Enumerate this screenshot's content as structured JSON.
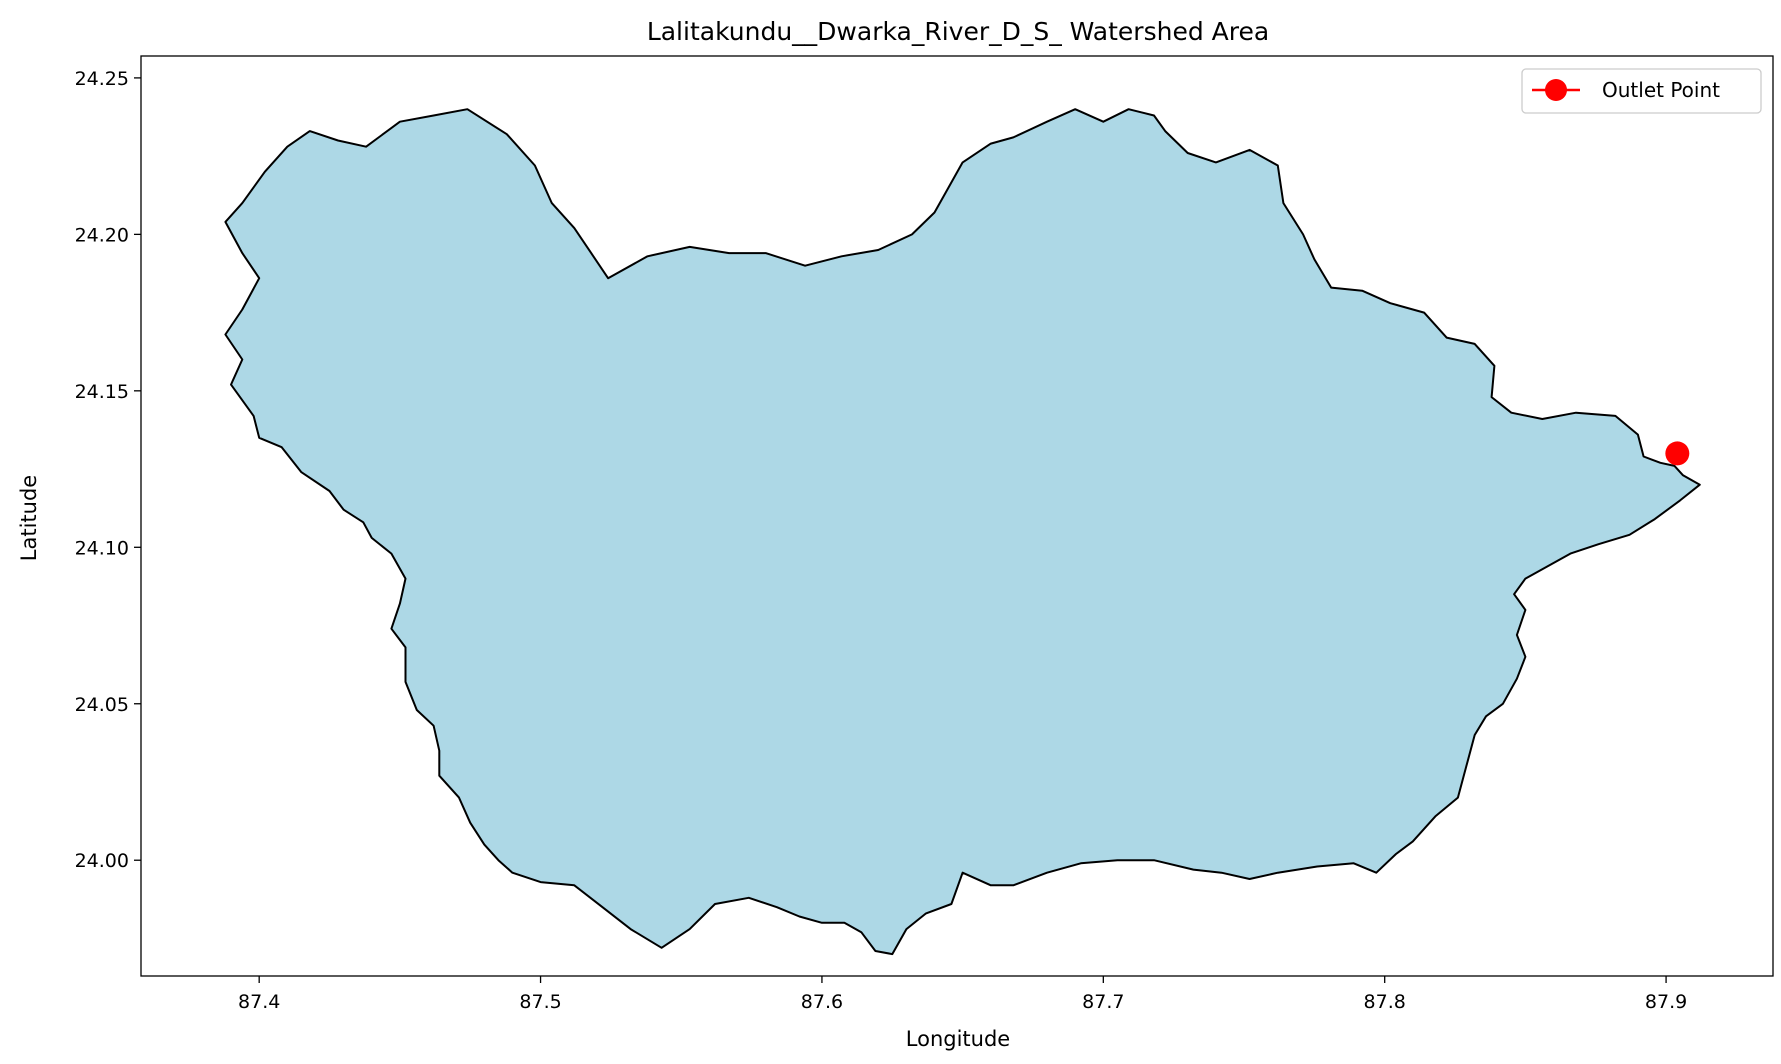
{
  "chart_data": {
    "type": "map",
    "title": "Lalitakundu__Dwarka_River_D_S_ Watershed Area",
    "xlabel": "Longitude",
    "ylabel": "Latitude",
    "xlim": [
      87.358,
      87.938
    ],
    "ylim": [
      23.963,
      24.257
    ],
    "xticks": [
      87.4,
      87.5,
      87.6,
      87.7,
      87.8,
      87.9
    ],
    "xtick_labels": [
      "87.4",
      "87.5",
      "87.6",
      "87.7",
      "87.8",
      "87.9"
    ],
    "yticks": [
      24.0,
      24.05,
      24.1,
      24.15,
      24.2,
      24.25
    ],
    "ytick_labels": [
      "24.00",
      "24.05",
      "24.10",
      "24.15",
      "24.20",
      "24.25"
    ],
    "grid": false,
    "legend": {
      "placement": "top-right",
      "entries": [
        "Outlet Point"
      ]
    },
    "watershed": {
      "fill": "#add8e6",
      "edge": "#000000",
      "boundary": [
        [
          87.388,
          24.168
        ],
        [
          87.394,
          24.16
        ],
        [
          87.39,
          24.152
        ],
        [
          87.398,
          24.142
        ],
        [
          87.4,
          24.135
        ],
        [
          87.408,
          24.132
        ],
        [
          87.415,
          24.124
        ],
        [
          87.425,
          24.118
        ],
        [
          87.43,
          24.112
        ],
        [
          87.437,
          24.108
        ],
        [
          87.44,
          24.103
        ],
        [
          87.447,
          24.098
        ],
        [
          87.452,
          24.09
        ],
        [
          87.45,
          24.082
        ],
        [
          87.447,
          24.074
        ],
        [
          87.452,
          24.068
        ],
        [
          87.452,
          24.057
        ],
        [
          87.456,
          24.048
        ],
        [
          87.462,
          24.043
        ],
        [
          87.464,
          24.035
        ],
        [
          87.464,
          24.027
        ],
        [
          87.471,
          24.02
        ],
        [
          87.475,
          24.012
        ],
        [
          87.48,
          24.005
        ],
        [
          87.485,
          24.0
        ],
        [
          87.49,
          23.996
        ],
        [
          87.5,
          23.993
        ],
        [
          87.512,
          23.992
        ],
        [
          87.522,
          23.985
        ],
        [
          87.532,
          23.978
        ],
        [
          87.543,
          23.972
        ],
        [
          87.553,
          23.978
        ],
        [
          87.562,
          23.986
        ],
        [
          87.574,
          23.988
        ],
        [
          87.584,
          23.985
        ],
        [
          87.592,
          23.982
        ],
        [
          87.6,
          23.98
        ],
        [
          87.608,
          23.98
        ],
        [
          87.614,
          23.977
        ],
        [
          87.619,
          23.971
        ],
        [
          87.625,
          23.97
        ],
        [
          87.63,
          23.978
        ],
        [
          87.637,
          23.983
        ],
        [
          87.646,
          23.986
        ],
        [
          87.65,
          23.996
        ],
        [
          87.66,
          23.992
        ],
        [
          87.668,
          23.992
        ],
        [
          87.68,
          23.996
        ],
        [
          87.692,
          23.999
        ],
        [
          87.705,
          24.0
        ],
        [
          87.718,
          24.0
        ],
        [
          87.732,
          23.997
        ],
        [
          87.742,
          23.996
        ],
        [
          87.752,
          23.994
        ],
        [
          87.762,
          23.996
        ],
        [
          87.776,
          23.998
        ],
        [
          87.789,
          23.999
        ],
        [
          87.797,
          23.996
        ],
        [
          87.804,
          24.002
        ],
        [
          87.81,
          24.006
        ],
        [
          87.818,
          24.014
        ],
        [
          87.826,
          24.02
        ],
        [
          87.829,
          24.03
        ],
        [
          87.832,
          24.04
        ],
        [
          87.836,
          24.046
        ],
        [
          87.842,
          24.05
        ],
        [
          87.847,
          24.058
        ],
        [
          87.85,
          24.065
        ],
        [
          87.847,
          24.072
        ],
        [
          87.85,
          24.08
        ],
        [
          87.846,
          24.085
        ],
        [
          87.85,
          24.09
        ],
        [
          87.858,
          24.094
        ],
        [
          87.866,
          24.098
        ],
        [
          87.876,
          24.101
        ],
        [
          87.887,
          24.104
        ],
        [
          87.896,
          24.109
        ],
        [
          87.905,
          24.115
        ],
        [
          87.912,
          24.12
        ],
        [
          87.906,
          24.123
        ],
        [
          87.903,
          24.126
        ],
        [
          87.898,
          24.127
        ],
        [
          87.892,
          24.129
        ],
        [
          87.89,
          24.136
        ],
        [
          87.882,
          24.142
        ],
        [
          87.868,
          24.143
        ],
        [
          87.856,
          24.141
        ],
        [
          87.845,
          24.143
        ],
        [
          87.838,
          24.148
        ],
        [
          87.839,
          24.158
        ],
        [
          87.832,
          24.165
        ],
        [
          87.822,
          24.167
        ],
        [
          87.814,
          24.175
        ],
        [
          87.802,
          24.178
        ],
        [
          87.792,
          24.182
        ],
        [
          87.781,
          24.183
        ],
        [
          87.775,
          24.192
        ],
        [
          87.771,
          24.2
        ],
        [
          87.764,
          24.21
        ],
        [
          87.762,
          24.222
        ],
        [
          87.752,
          24.227
        ],
        [
          87.74,
          24.223
        ],
        [
          87.73,
          24.226
        ],
        [
          87.722,
          24.233
        ],
        [
          87.718,
          24.238
        ],
        [
          87.709,
          24.24
        ],
        [
          87.7,
          24.236
        ],
        [
          87.69,
          24.24
        ],
        [
          87.68,
          24.236
        ],
        [
          87.668,
          24.231
        ],
        [
          87.66,
          24.229
        ],
        [
          87.65,
          24.223
        ],
        [
          87.645,
          24.215
        ],
        [
          87.64,
          24.207
        ],
        [
          87.632,
          24.2
        ],
        [
          87.62,
          24.195
        ],
        [
          87.607,
          24.193
        ],
        [
          87.594,
          24.19
        ],
        [
          87.58,
          24.194
        ],
        [
          87.567,
          24.194
        ],
        [
          87.553,
          24.196
        ],
        [
          87.538,
          24.193
        ],
        [
          87.524,
          24.186
        ],
        [
          87.518,
          24.194
        ],
        [
          87.512,
          24.202
        ],
        [
          87.504,
          24.21
        ],
        [
          87.498,
          24.222
        ],
        [
          87.488,
          24.232
        ],
        [
          87.474,
          24.24
        ],
        [
          87.462,
          24.238
        ],
        [
          87.45,
          24.236
        ],
        [
          87.438,
          24.228
        ],
        [
          87.428,
          24.23
        ],
        [
          87.418,
          24.233
        ],
        [
          87.41,
          24.228
        ],
        [
          87.402,
          24.22
        ],
        [
          87.394,
          24.21
        ],
        [
          87.388,
          24.204
        ],
        [
          87.394,
          24.194
        ],
        [
          87.4,
          24.186
        ],
        [
          87.394,
          24.176
        ],
        [
          87.388,
          24.168
        ]
      ]
    },
    "outlet_point": {
      "name": "Outlet Point",
      "lon": 87.904,
      "lat": 24.13,
      "color": "#ff0000"
    }
  }
}
